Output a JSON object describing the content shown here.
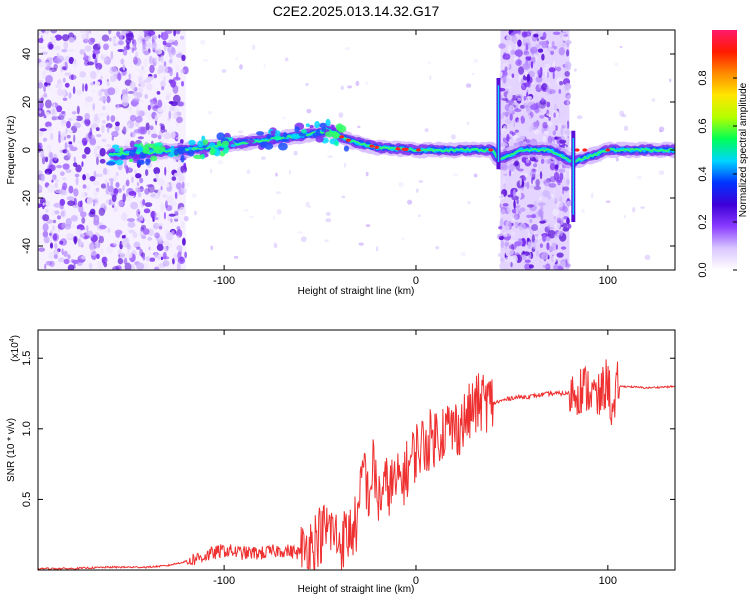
{
  "title": "C2E2.2025.013.14.32.G17",
  "chart_data": [
    {
      "type": "heatmap",
      "xlabel": "Height of straight line (km)",
      "ylabel": "Frequency (Hz)",
      "xlim": [
        -197,
        135
      ],
      "ylim": [
        -50,
        50
      ],
      "xticks": [
        -100,
        0,
        100
      ],
      "xtick_labels": [
        "-100",
        "0",
        "100"
      ],
      "yticks": [
        40,
        20,
        0,
        -20,
        -40
      ],
      "ytick_labels": [
        "40",
        "20",
        "0",
        "-20",
        "-40"
      ],
      "ridge": {
        "x": [
          -160,
          -140,
          -120,
          -100,
          -80,
          -60,
          -45,
          -35,
          -20,
          0,
          20,
          40,
          43,
          55,
          70,
          82,
          100,
          120,
          135
        ],
        "y": [
          -2,
          -1,
          0,
          2,
          4,
          6,
          8,
          4,
          1,
          0,
          0,
          0,
          -4,
          0,
          0,
          -5,
          0,
          0,
          0
        ]
      },
      "noise_bands_km": [
        [
          -197,
          -120
        ],
        [
          44,
          80
        ]
      ],
      "colorbar": {
        "label": "Normalized spectral amplitude",
        "ticks": [
          "0.0",
          "0.2",
          "0.4",
          "0.6",
          "0.8"
        ],
        "tick_values": [
          0,
          0.2,
          0.4,
          0.6,
          0.8
        ],
        "range": [
          0,
          1
        ],
        "colors": [
          "#ffffff",
          "#d9c6ff",
          "#8a3cff",
          "#3d00d8",
          "#0033ff",
          "#00d5ff",
          "#00ff55",
          "#b4ff00",
          "#ffe600",
          "#ff8c00",
          "#ff1a00",
          "#ff1a6a"
        ]
      }
    },
    {
      "type": "line",
      "xlabel": "Height of straight line (km)",
      "ylabel": "SNR (10 * v/v)",
      "multiplier": "(x10",
      "multiplier_exp": "4",
      "multiplier_close": ")",
      "xlim": [
        -197,
        135
      ],
      "ylim": [
        0,
        1.7
      ],
      "xticks": [
        -100,
        0,
        100
      ],
      "xtick_labels": [
        "-100",
        "0",
        "100"
      ],
      "yticks": [
        0.5,
        1.0,
        1.5
      ],
      "ytick_labels": [
        "0.5",
        "1.0",
        "1.5"
      ],
      "series": [
        {
          "color": "#ee3030",
          "x": [
            -197,
            -180,
            -160,
            -140,
            -130,
            -120,
            -110,
            -100,
            -90,
            -80,
            -70,
            -60,
            -55,
            -50,
            -45,
            -40,
            -35,
            -30,
            -27,
            -25,
            -22,
            -20,
            -15,
            -10,
            -5,
            0,
            5,
            10,
            15,
            20,
            25,
            30,
            35,
            40,
            50,
            60,
            70,
            80,
            85,
            90,
            95,
            100,
            103,
            105,
            110,
            120,
            135
          ],
          "y": [
            0.01,
            0.01,
            0.02,
            0.02,
            0.03,
            0.06,
            0.1,
            0.14,
            0.12,
            0.12,
            0.14,
            0.12,
            0.18,
            0.25,
            0.3,
            0.2,
            0.25,
            0.35,
            0.8,
            0.5,
            0.75,
            0.5,
            0.6,
            0.6,
            0.7,
            0.85,
            0.9,
            0.95,
            1.0,
            1.0,
            1.05,
            1.15,
            1.2,
            1.18,
            1.22,
            1.23,
            1.25,
            1.25,
            1.28,
            1.28,
            1.2,
            1.35,
            1.05,
            1.3,
            1.3,
            1.29,
            1.3
          ]
        }
      ]
    }
  ]
}
